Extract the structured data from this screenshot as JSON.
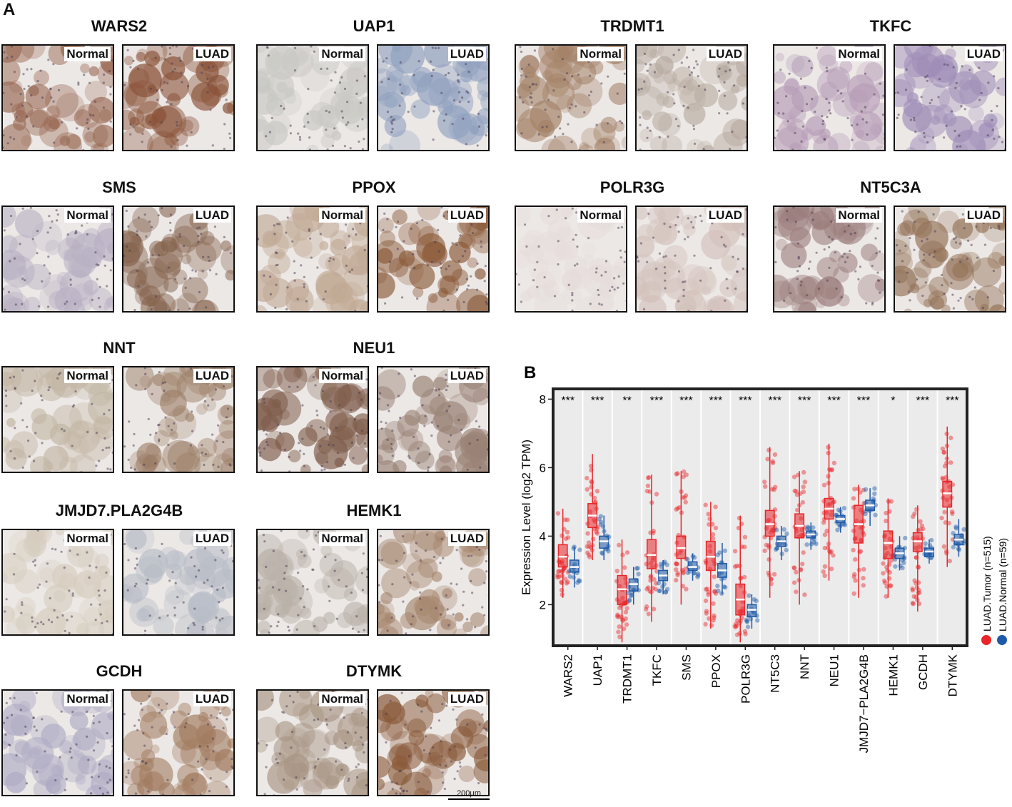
{
  "panel_a": {
    "letter": "A",
    "normal_tag": "Normal",
    "tumor_tag": "LUAD",
    "scale_bar": "200μm",
    "genes": [
      {
        "name": "WARS2",
        "normal_stain": "#9a6a55",
        "tumor_stain": "#8a5238"
      },
      {
        "name": "UAP1",
        "normal_stain": "#c9c8c4",
        "tumor_stain": "#8fa0bf"
      },
      {
        "name": "TRDMT1",
        "normal_stain": "#a48268",
        "tumor_stain": "#b7aa9f"
      },
      {
        "name": "TKFC",
        "normal_stain": "#b79db8",
        "tumor_stain": "#9f8db8"
      },
      {
        "name": "SMS",
        "normal_stain": "#b8b0c3",
        "tumor_stain": "#86644e"
      },
      {
        "name": "PPOX",
        "normal_stain": "#c1a994",
        "tumor_stain": "#8c5c3b"
      },
      {
        "name": "POLR3G",
        "normal_stain": "#e6dcda",
        "tumor_stain": "#d3c1bb"
      },
      {
        "name": "NT5C3A",
        "normal_stain": "#9b7d7c",
        "tumor_stain": "#937257"
      },
      {
        "name": "NNT",
        "normal_stain": "#c3b6a4",
        "tumor_stain": "#9b7d65"
      },
      {
        "name": "NEU1",
        "normal_stain": "#7f5c4a",
        "tumor_stain": "#9a8275"
      },
      {
        "name": "JMJD7.PLA2G4B",
        "normal_stain": "#d6cdbe",
        "tumor_stain": "#b7bcc6"
      },
      {
        "name": "HEMK1",
        "normal_stain": "#b9b1a8",
        "tumor_stain": "#a6866e"
      },
      {
        "name": "GCDH",
        "normal_stain": "#aeaac4",
        "tumor_stain": "#a27c60"
      },
      {
        "name": "DTYMK",
        "normal_stain": "#a89584",
        "tumor_stain": "#8a5a3a"
      }
    ]
  },
  "chart_data": {
    "letter": "B",
    "type": "box",
    "ylabel": "Expression Level (log2 TPM)",
    "ylim": [
      0.8,
      8.3
    ],
    "yticks": [
      2,
      4,
      6,
      8
    ],
    "categories": [
      "WARS2",
      "UAP1",
      "TRDMT1",
      "TKFC",
      "SMS",
      "PPOX",
      "POLR3G",
      "NT5C3",
      "NNT",
      "NEU1",
      "JMJD7−PLA2G4B",
      "HEMK1",
      "GCDH",
      "DTYMK"
    ],
    "significance": [
      "***",
      "***",
      "**",
      "***",
      "***",
      "***",
      "***",
      "***",
      "***",
      "***",
      "***",
      "*",
      "***",
      "***"
    ],
    "series": [
      {
        "name": "LUAD.Tumor (n=515)",
        "color": "#e8262a",
        "boxes": [
          {
            "min": 2.2,
            "q1": 3.1,
            "median": 3.4,
            "q3": 3.75,
            "max": 4.8
          },
          {
            "min": 3.3,
            "q1": 4.25,
            "median": 4.6,
            "q3": 4.95,
            "max": 6.4
          },
          {
            "min": 0.9,
            "q1": 2.0,
            "median": 2.45,
            "q3": 2.85,
            "max": 3.9
          },
          {
            "min": 1.5,
            "q1": 3.05,
            "median": 3.45,
            "q3": 3.9,
            "max": 5.8
          },
          {
            "min": 2.0,
            "q1": 3.35,
            "median": 3.65,
            "q3": 4.0,
            "max": 5.9
          },
          {
            "min": 1.3,
            "q1": 3.0,
            "median": 3.4,
            "q3": 3.85,
            "max": 5.0
          },
          {
            "min": 0.9,
            "q1": 1.7,
            "median": 2.15,
            "q3": 2.6,
            "max": 4.6
          },
          {
            "min": 2.2,
            "q1": 4.0,
            "median": 4.35,
            "q3": 4.75,
            "max": 6.6
          },
          {
            "min": 2.0,
            "q1": 3.95,
            "median": 4.3,
            "q3": 4.65,
            "max": 5.9
          },
          {
            "min": 2.7,
            "q1": 4.5,
            "median": 4.8,
            "q3": 5.1,
            "max": 6.7
          },
          {
            "min": 2.2,
            "q1": 3.8,
            "median": 4.35,
            "q3": 4.9,
            "max": 5.5
          },
          {
            "min": 2.2,
            "q1": 3.35,
            "median": 3.8,
            "q3": 4.15,
            "max": 5.1
          },
          {
            "min": 1.8,
            "q1": 3.55,
            "median": 3.85,
            "q3": 4.1,
            "max": 4.9
          },
          {
            "min": 3.1,
            "q1": 4.85,
            "median": 5.25,
            "q3": 5.6,
            "max": 7.2
          }
        ]
      },
      {
        "name": "LUAD.Normal (n=59)",
        "color": "#1f5aa8",
        "boxes": [
          {
            "min": 2.5,
            "q1": 2.95,
            "median": 3.1,
            "q3": 3.3,
            "max": 3.7
          },
          {
            "min": 3.3,
            "q1": 3.65,
            "median": 3.85,
            "q3": 4.0,
            "max": 4.6
          },
          {
            "min": 2.0,
            "q1": 2.4,
            "median": 2.6,
            "q3": 2.75,
            "max": 3.1
          },
          {
            "min": 2.3,
            "q1": 2.7,
            "median": 2.85,
            "q3": 3.0,
            "max": 3.3
          },
          {
            "min": 2.7,
            "q1": 3.0,
            "median": 3.1,
            "q3": 3.25,
            "max": 3.5
          },
          {
            "min": 2.3,
            "q1": 2.8,
            "median": 3.0,
            "q3": 3.2,
            "max": 3.8
          },
          {
            "min": 1.3,
            "q1": 1.65,
            "median": 1.85,
            "q3": 2.0,
            "max": 2.3
          },
          {
            "min": 3.3,
            "q1": 3.7,
            "median": 3.85,
            "q3": 4.0,
            "max": 4.3
          },
          {
            "min": 3.6,
            "q1": 3.95,
            "median": 4.05,
            "q3": 4.15,
            "max": 4.4
          },
          {
            "min": 4.1,
            "q1": 4.4,
            "median": 4.5,
            "q3": 4.6,
            "max": 4.85
          },
          {
            "min": 4.3,
            "q1": 4.75,
            "median": 4.9,
            "q3": 5.05,
            "max": 5.4
          },
          {
            "min": 3.0,
            "q1": 3.35,
            "median": 3.5,
            "q3": 3.65,
            "max": 4.0
          },
          {
            "min": 3.2,
            "q1": 3.4,
            "median": 3.55,
            "q3": 3.65,
            "max": 3.9
          },
          {
            "min": 3.4,
            "q1": 3.75,
            "median": 3.9,
            "q3": 4.05,
            "max": 4.5
          }
        ]
      }
    ],
    "legend_position": "right"
  }
}
